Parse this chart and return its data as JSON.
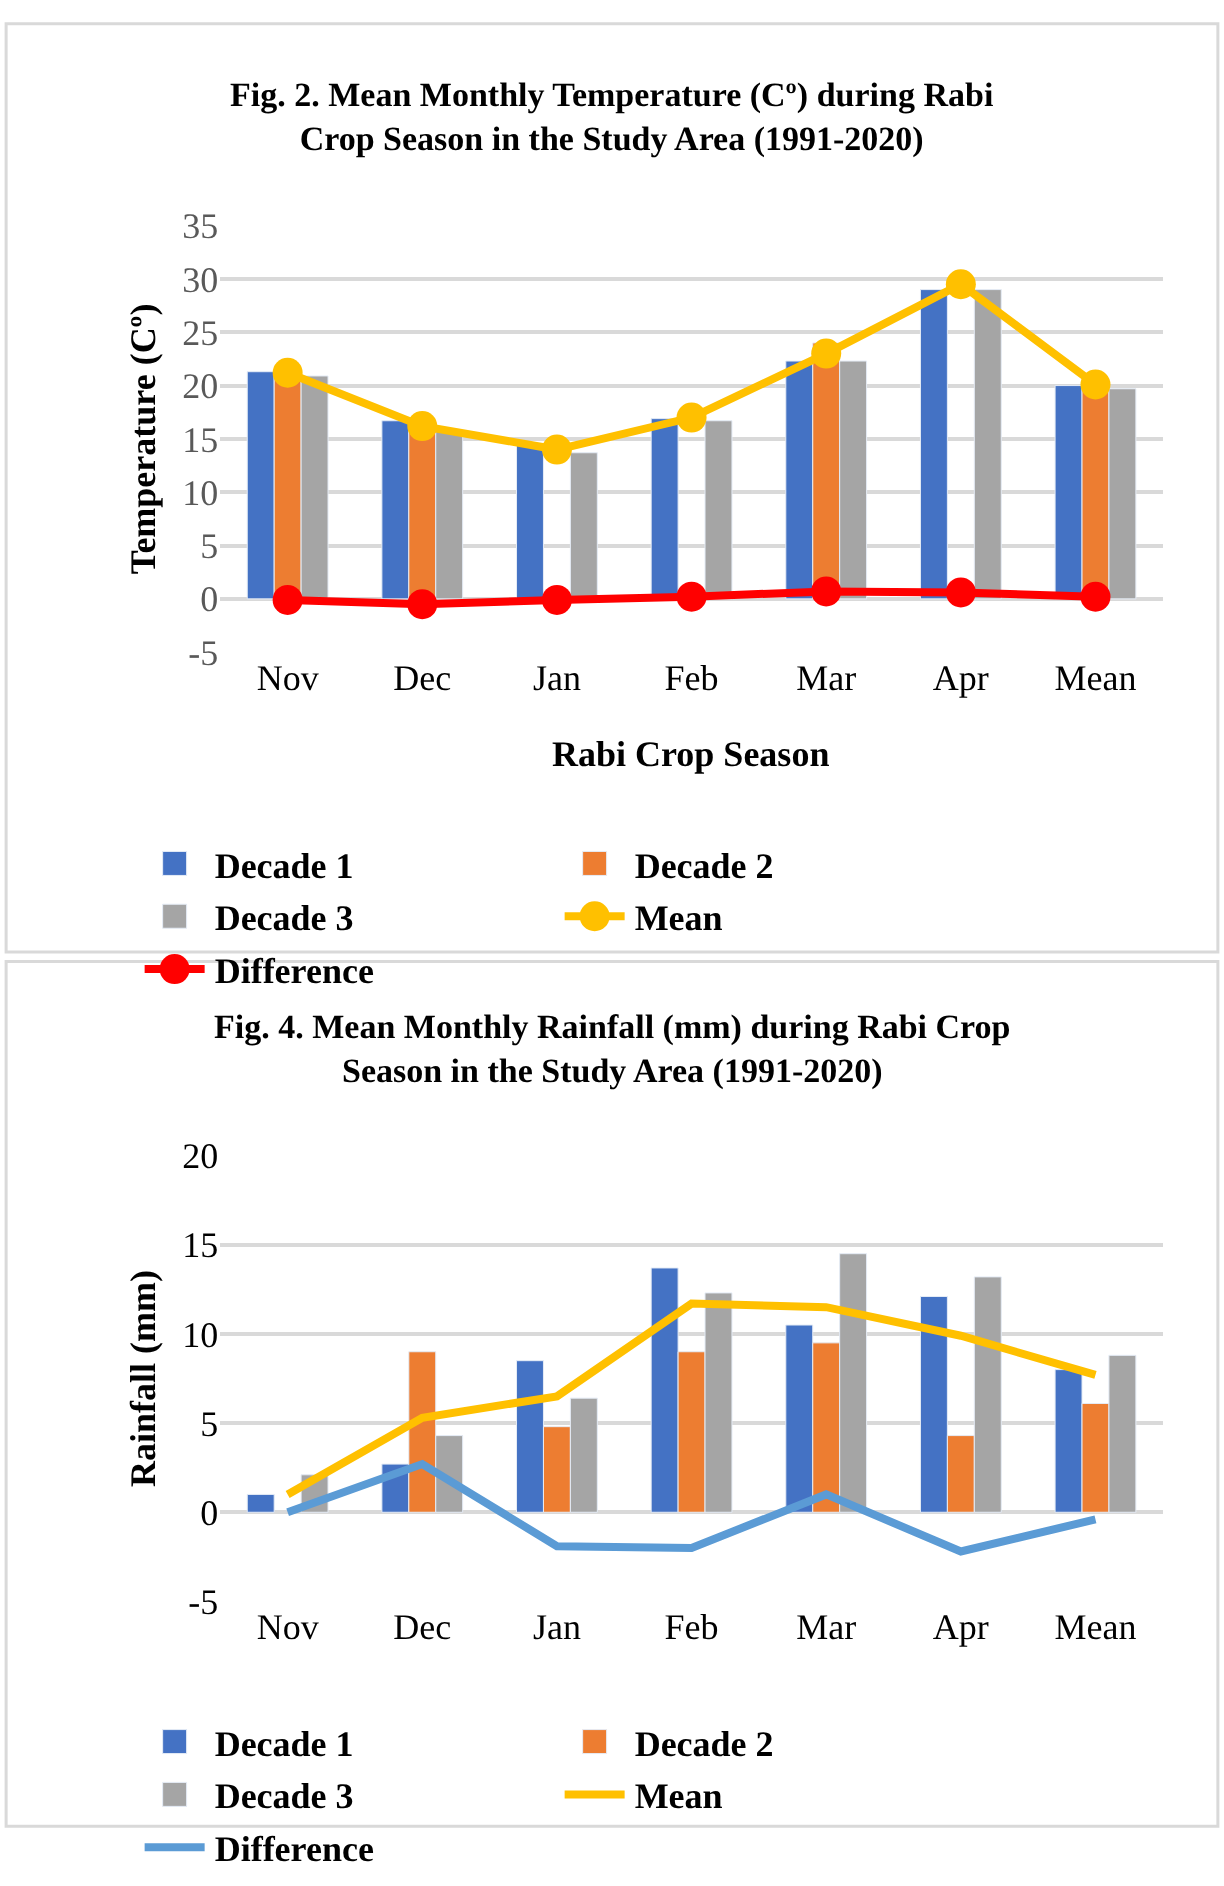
{
  "chart_data": [
    {
      "type": "bar",
      "title": "Fig. 2. Mean Monthly Temperature (Cº) during Rabi Crop Season in the Study Area (1991-2020)",
      "xlabel": "Rabi Crop Season",
      "ylabel": "Temperature (Cº)",
      "categories": [
        "Nov",
        "Dec",
        "Jan",
        "Feb",
        "Mar",
        "Apr",
        "Mean"
      ],
      "ylim": [
        -5,
        35
      ],
      "yticks": [
        -5,
        0,
        5,
        10,
        15,
        20,
        25,
        30,
        35
      ],
      "grid": "y",
      "legend": "bottom",
      "marker": "circle",
      "series": [
        {
          "name": "Decade 1",
          "color": "#4472c4",
          "values": [
            21.3,
            16.7,
            14.5,
            16.9,
            22.3,
            29.0,
            20.0
          ]
        },
        {
          "name": "Decade 2",
          "color": "#ed7d31",
          "values": [
            21.2,
            16.2,
            null,
            null,
            24.0,
            null,
            20.2
          ]
        },
        {
          "name": "Decade 3",
          "color": "#a5a5a5",
          "values": [
            20.9,
            15.8,
            13.7,
            16.7,
            22.3,
            29.0,
            19.7
          ]
        },
        {
          "name": "Mean",
          "type": "line",
          "color": "#ffc000",
          "values": [
            21.2,
            16.2,
            14.0,
            17.0,
            23.0,
            29.5,
            20.1
          ]
        },
        {
          "name": "Difference",
          "type": "line",
          "color": "#ff0000",
          "values": [
            -0.1,
            -0.5,
            -0.1,
            0.2,
            0.7,
            0.6,
            0.2
          ]
        }
      ]
    },
    {
      "type": "bar",
      "title": "Fig. 4. Mean Monthly Rainfall (mm) during Rabi Crop Season in the Study Area (1991-2020)",
      "ylabel": "Rainfall (mm)",
      "categories": [
        "Nov",
        "Dec",
        "Jan",
        "Feb",
        "Mar",
        "Apr",
        "Mean"
      ],
      "ylim": [
        -5,
        20
      ],
      "yticks": [
        -5,
        0,
        5,
        10,
        15,
        20
      ],
      "grid": "y",
      "legend": "bottom",
      "series": [
        {
          "name": "Decade 1",
          "color": "#4472c4",
          "values": [
            1.0,
            2.7,
            8.5,
            13.7,
            10.5,
            12.1,
            8.0
          ]
        },
        {
          "name": "Decade 2",
          "color": "#ed7d31",
          "values": [
            null,
            9.0,
            4.8,
            9.0,
            9.5,
            4.3,
            6.1
          ]
        },
        {
          "name": "Decade 3",
          "color": "#a5a5a5",
          "values": [
            2.1,
            4.3,
            6.4,
            12.3,
            14.5,
            13.2,
            8.8
          ]
        },
        {
          "name": "Mean",
          "type": "line",
          "color": "#ffc000",
          "values": [
            1.0,
            5.3,
            6.5,
            11.7,
            11.5,
            9.9,
            7.7
          ]
        },
        {
          "name": "Difference",
          "type": "line",
          "color": "#5b9bd5",
          "values": [
            0.0,
            2.7,
            -1.9,
            -2.0,
            1.0,
            -2.2,
            -0.4
          ]
        }
      ]
    }
  ]
}
